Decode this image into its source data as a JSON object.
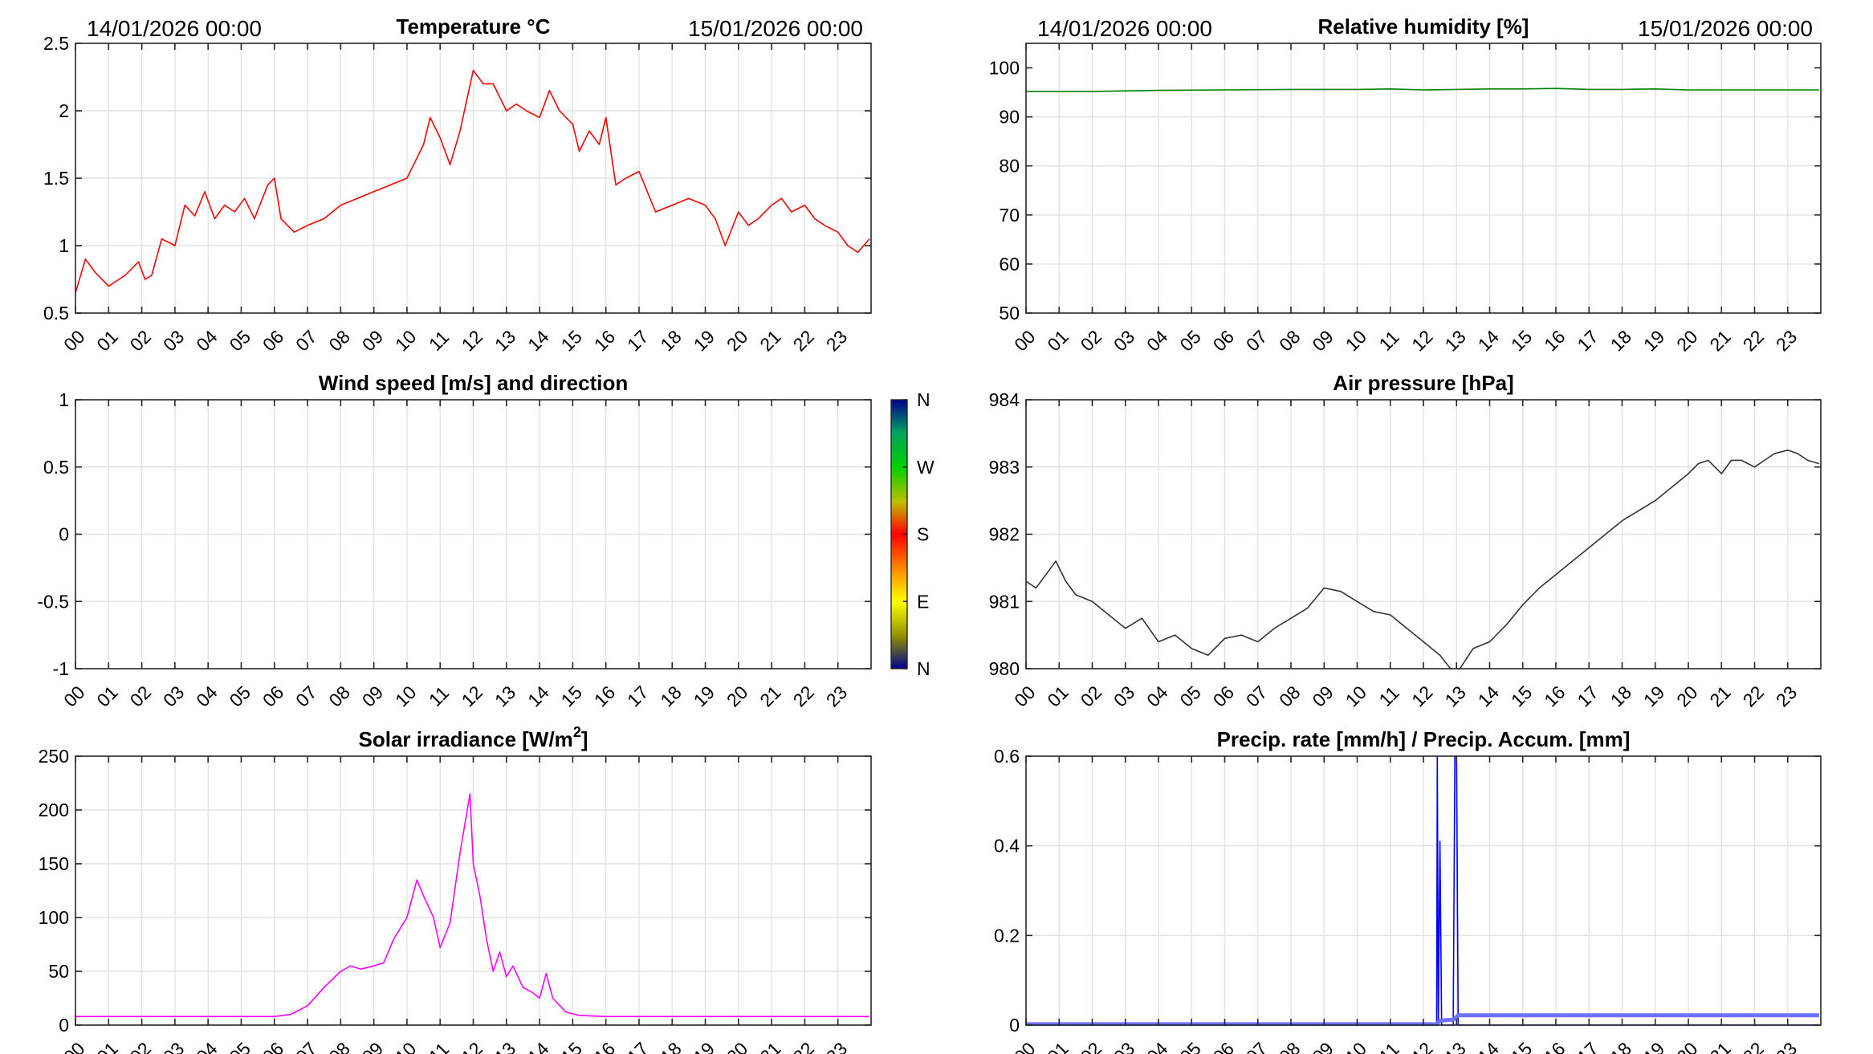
{
  "chart_data": [
    {
      "id": "temperature",
      "type": "line",
      "title": "Temperature °C",
      "date_start": "14/01/2026 00:00",
      "date_end": "15/01/2026 00:00",
      "x_tick_labels": [
        "00",
        "01",
        "02",
        "03",
        "04",
        "05",
        "06",
        "07",
        "08",
        "09",
        "10",
        "11",
        "12",
        "13",
        "14",
        "15",
        "16",
        "17",
        "18",
        "19",
        "20",
        "21",
        "22",
        "23"
      ],
      "ylim": [
        0.5,
        2.5
      ],
      "y_ticks": [
        0.5,
        1,
        1.5,
        2,
        2.5
      ],
      "y_tick_labels": [
        "0.5",
        "1",
        "1.5",
        "2",
        "2.5"
      ],
      "grid": true,
      "color": "#ff0000",
      "x": [
        0,
        0.3,
        0.6,
        1,
        1.5,
        1.9,
        2.1,
        2.3,
        2.6,
        3,
        3.3,
        3.6,
        3.9,
        4.2,
        4.5,
        4.8,
        5.1,
        5.4,
        5.8,
        6.0,
        6.2,
        6.6,
        7,
        7.5,
        8,
        8.5,
        9,
        9.5,
        10,
        10.2,
        10.5,
        10.7,
        11,
        11.3,
        11.6,
        12,
        12.3,
        12.6,
        13,
        13.3,
        13.6,
        14,
        14.3,
        14.6,
        15,
        15.2,
        15.5,
        15.8,
        16,
        16.3,
        16.6,
        17,
        17.5,
        18,
        18.5,
        19,
        19.3,
        19.6,
        20,
        20.3,
        20.6,
        21,
        21.3,
        21.6,
        22,
        22.3,
        22.6,
        23,
        23.3,
        23.6,
        23.95
      ],
      "y": [
        0.65,
        0.9,
        0.8,
        0.7,
        0.78,
        0.88,
        0.75,
        0.78,
        1.05,
        1.0,
        1.3,
        1.22,
        1.4,
        1.2,
        1.3,
        1.25,
        1.35,
        1.2,
        1.45,
        1.5,
        1.2,
        1.1,
        1.15,
        1.2,
        1.3,
        1.35,
        1.4,
        1.45,
        1.5,
        1.6,
        1.75,
        1.95,
        1.8,
        1.6,
        1.85,
        2.3,
        2.2,
        2.2,
        2.0,
        2.05,
        2.0,
        1.95,
        2.15,
        2.0,
        1.9,
        1.7,
        1.85,
        1.75,
        1.95,
        1.45,
        1.5,
        1.55,
        1.25,
        1.3,
        1.35,
        1.3,
        1.2,
        1.0,
        1.25,
        1.15,
        1.2,
        1.3,
        1.35,
        1.25,
        1.3,
        1.2,
        1.15,
        1.1,
        1.0,
        0.95,
        1.05
      ]
    },
    {
      "id": "humidity",
      "type": "line",
      "title": "Relative humidity [%]",
      "date_start": "14/01/2026 00:00",
      "date_end": "15/01/2026 00:00",
      "x_tick_labels": [
        "00",
        "01",
        "02",
        "03",
        "04",
        "05",
        "06",
        "07",
        "08",
        "09",
        "10",
        "11",
        "12",
        "13",
        "14",
        "15",
        "16",
        "17",
        "18",
        "19",
        "20",
        "21",
        "22",
        "23"
      ],
      "ylim": [
        50,
        105
      ],
      "y_ticks": [
        50,
        60,
        70,
        80,
        90,
        100
      ],
      "y_tick_labels": [
        "50",
        "60",
        "70",
        "80",
        "90",
        "100"
      ],
      "grid": true,
      "color": "#007f00",
      "x": [
        0,
        2,
        4,
        6,
        8,
        10,
        11,
        12,
        13,
        14,
        15,
        16,
        17,
        18,
        19,
        20,
        22,
        23.95
      ],
      "y": [
        95.2,
        95.2,
        95.4,
        95.5,
        95.6,
        95.6,
        95.7,
        95.5,
        95.6,
        95.7,
        95.7,
        95.8,
        95.6,
        95.6,
        95.7,
        95.5,
        95.5,
        95.5
      ]
    },
    {
      "id": "wind",
      "type": "scatter",
      "title": "Wind speed [m/s] and direction",
      "x_tick_labels": [
        "00",
        "01",
        "02",
        "03",
        "04",
        "05",
        "06",
        "07",
        "08",
        "09",
        "10",
        "11",
        "12",
        "13",
        "14",
        "15",
        "16",
        "17",
        "18",
        "19",
        "20",
        "21",
        "22",
        "23"
      ],
      "ylim": [
        -1,
        1
      ],
      "y_ticks": [
        -1,
        -0.5,
        0,
        0.5,
        1
      ],
      "y_tick_labels": [
        "-1",
        "-0.5",
        "0",
        "0.5",
        "1"
      ],
      "grid": true,
      "x": [],
      "y": [],
      "colorbar_labels": [
        "N",
        "W",
        "S",
        "E",
        "N"
      ]
    },
    {
      "id": "pressure",
      "type": "line",
      "title": "Air pressure [hPa]",
      "x_tick_labels": [
        "00",
        "01",
        "02",
        "03",
        "04",
        "05",
        "06",
        "07",
        "08",
        "09",
        "10",
        "11",
        "12",
        "13",
        "14",
        "15",
        "16",
        "17",
        "18",
        "19",
        "20",
        "21",
        "22",
        "23"
      ],
      "ylim": [
        980,
        984
      ],
      "y_ticks": [
        980,
        981,
        982,
        983,
        984
      ],
      "y_tick_labels": [
        "980",
        "981",
        "982",
        "983",
        "984"
      ],
      "grid": true,
      "color": "#333333",
      "x": [
        0,
        0.3,
        0.6,
        0.9,
        1.2,
        1.5,
        2,
        2.5,
        3,
        3.5,
        4,
        4.5,
        5,
        5.5,
        6,
        6.5,
        7,
        7.5,
        8,
        8.5,
        9,
        9.5,
        10,
        10.5,
        11,
        11.5,
        12,
        12.5,
        12.9,
        13.1,
        13.5,
        14,
        14.5,
        15,
        15.5,
        16,
        16.5,
        17,
        17.5,
        18,
        18.5,
        19,
        19.5,
        20,
        20.3,
        20.6,
        21,
        21.3,
        21.6,
        22,
        22.3,
        22.6,
        23,
        23.3,
        23.6,
        23.95
      ],
      "y": [
        981.3,
        981.2,
        981.4,
        981.6,
        981.3,
        981.1,
        981.0,
        980.8,
        980.6,
        980.75,
        980.4,
        980.5,
        980.3,
        980.2,
        980.45,
        980.5,
        980.4,
        980.6,
        980.75,
        980.9,
        981.2,
        981.15,
        981.0,
        980.85,
        980.8,
        980.6,
        980.4,
        980.2,
        979.95,
        980.0,
        980.3,
        980.4,
        980.65,
        980.95,
        981.2,
        981.4,
        981.6,
        981.8,
        982.0,
        982.2,
        982.35,
        982.5,
        982.7,
        982.9,
        983.05,
        983.1,
        982.9,
        983.1,
        983.1,
        983.0,
        983.1,
        983.2,
        983.25,
        983.2,
        983.1,
        983.05
      ]
    },
    {
      "id": "solar",
      "type": "line",
      "title": "Solar irradiance [W/m²]",
      "x_tick_labels": [
        "00",
        "01",
        "02",
        "03",
        "04",
        "05",
        "06",
        "07",
        "08",
        "09",
        "10",
        "11",
        "12",
        "13",
        "14",
        "15",
        "16",
        "17",
        "18",
        "19",
        "20",
        "21",
        "22",
        "23"
      ],
      "ylim": [
        0,
        250
      ],
      "y_ticks": [
        0,
        50,
        100,
        150,
        200,
        250
      ],
      "y_tick_labels": [
        "0",
        "50",
        "100",
        "150",
        "200",
        "250"
      ],
      "grid": true,
      "color": "#ff00ff",
      "x": [
        0,
        3,
        6,
        6.5,
        7,
        7.5,
        8,
        8.3,
        8.6,
        9,
        9.3,
        9.6,
        10,
        10.3,
        10.5,
        10.8,
        11,
        11.3,
        11.6,
        11.9,
        12,
        12.2,
        12.4,
        12.6,
        12.8,
        13,
        13.2,
        13.5,
        13.8,
        14,
        14.2,
        14.4,
        14.8,
        15.2,
        16,
        20,
        23.95
      ],
      "y": [
        8,
        8,
        8,
        10,
        18,
        35,
        50,
        55,
        52,
        55,
        58,
        80,
        100,
        135,
        120,
        100,
        72,
        95,
        160,
        215,
        150,
        120,
        80,
        50,
        68,
        45,
        55,
        35,
        30,
        25,
        48,
        25,
        12,
        9,
        8,
        8,
        8
      ]
    },
    {
      "id": "precip",
      "type": "line",
      "title": "Precip. rate [mm/h] / Precip. Accum. [mm]",
      "x_tick_labels": [
        "00",
        "01",
        "02",
        "03",
        "04",
        "05",
        "06",
        "07",
        "08",
        "09",
        "10",
        "11",
        "12",
        "13",
        "14",
        "15",
        "16",
        "17",
        "18",
        "19",
        "20",
        "21",
        "22",
        "23"
      ],
      "ylim": [
        0,
        0.6
      ],
      "y_ticks": [
        0,
        0.2,
        0.4,
        0.6
      ],
      "y_tick_labels": [
        "0",
        "0.2",
        "0.4",
        "0.6"
      ],
      "grid": true,
      "series": [
        {
          "kind": "rate",
          "color": "#0000ff",
          "x": [
            0,
            12.4,
            12.42,
            12.45,
            12.5,
            12.52,
            12.55,
            12.9,
            12.95,
            13.0,
            13.05,
            23.95
          ],
          "y": [
            0,
            0,
            0.6,
            0,
            0.41,
            0.25,
            0,
            0,
            0.6,
            0.6,
            0,
            0
          ]
        },
        {
          "kind": "accumulation",
          "color": "#7070ff",
          "x": [
            0,
            12.4,
            12.5,
            12.9,
            13.05,
            23.95
          ],
          "y": [
            0.002,
            0.002,
            0.01,
            0.012,
            0.022,
            0.022
          ]
        }
      ]
    }
  ]
}
